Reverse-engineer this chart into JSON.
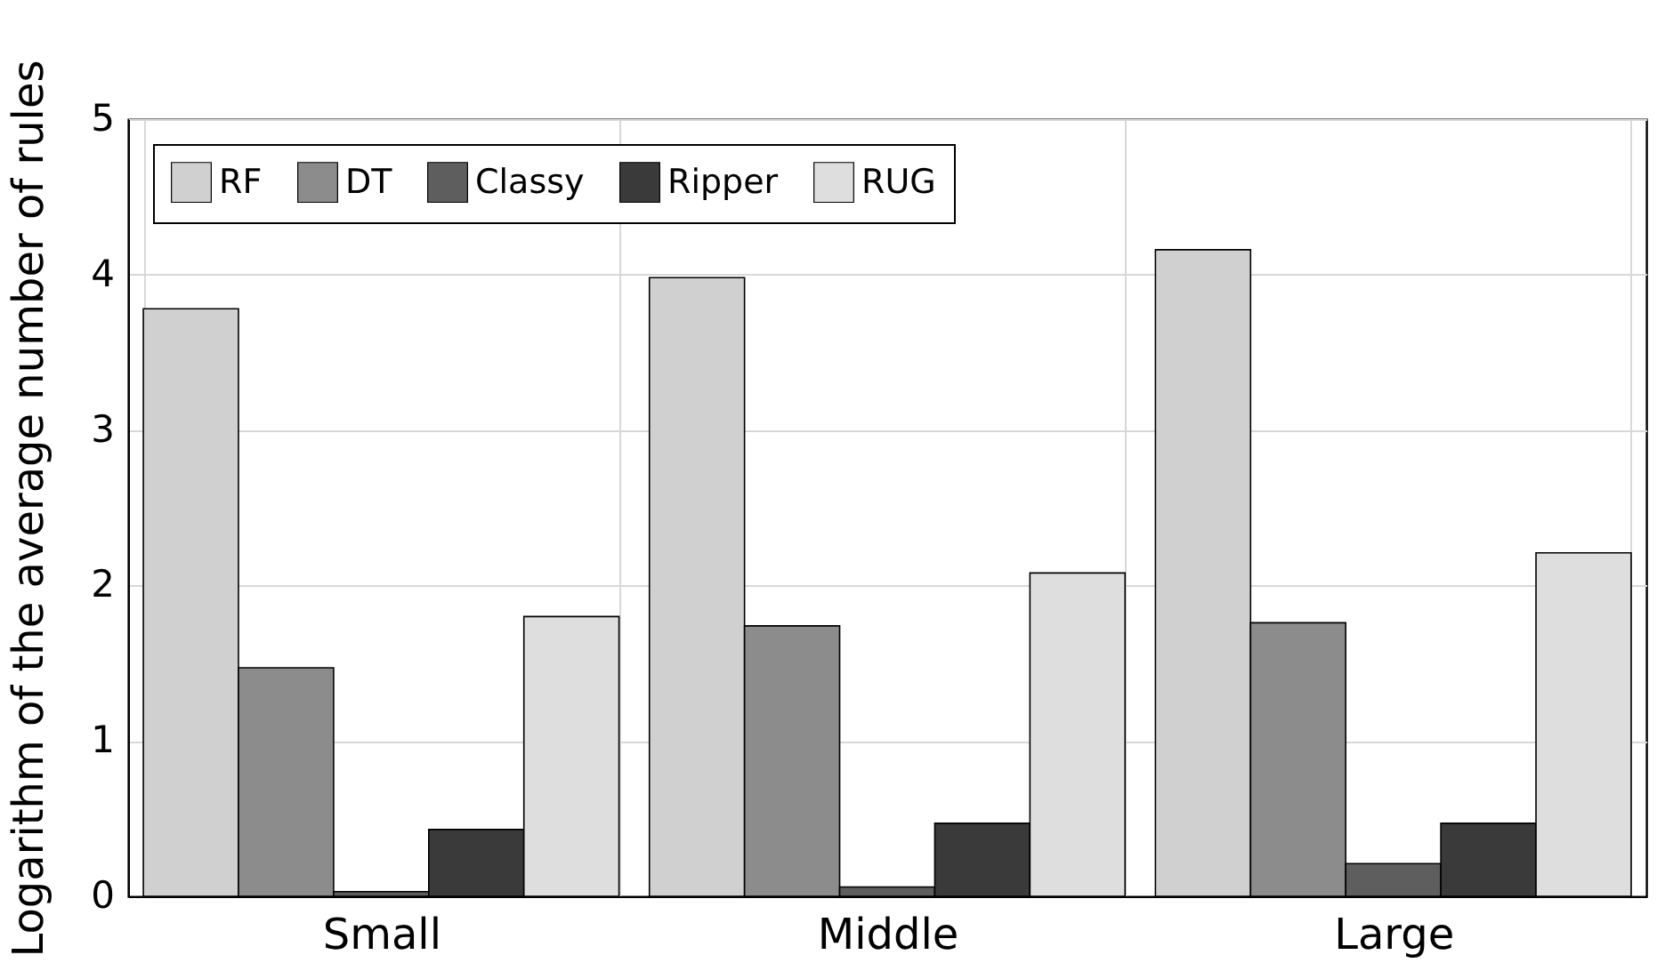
{
  "chart_data": {
    "type": "bar",
    "ylabel": "Logarithm of the average number of rules",
    "categories": [
      "Small",
      "Middle",
      "Large"
    ],
    "series": [
      {
        "name": "RF",
        "color": "#d0d0d0",
        "values": [
          3.78,
          3.98,
          4.16
        ]
      },
      {
        "name": "DT",
        "color": "#8c8c8c",
        "values": [
          1.47,
          1.74,
          1.76
        ]
      },
      {
        "name": "Classy",
        "color": "#5e5e5e",
        "values": [
          0.03,
          0.06,
          0.21
        ]
      },
      {
        "name": "Ripper",
        "color": "#3a3a3a",
        "values": [
          0.43,
          0.47,
          0.47
        ]
      },
      {
        "name": "RUG",
        "color": "#dedede",
        "values": [
          1.8,
          2.08,
          2.21
        ]
      }
    ],
    "ylim": [
      0,
      5
    ],
    "yticks": [
      0,
      1,
      2,
      3,
      4,
      5
    ],
    "grid": true,
    "legend": "top left"
  }
}
